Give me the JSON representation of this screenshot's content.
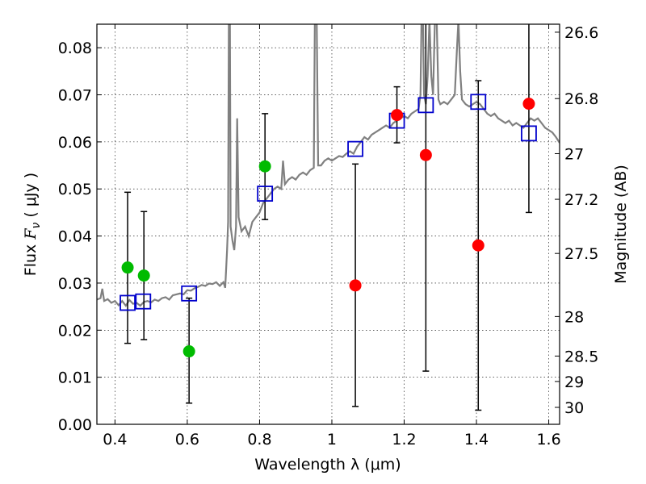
{
  "chart_data": {
    "type": "scatter",
    "xlabel": "Wavelength  λ (μm)",
    "ylabel_parts": [
      "Flux  ",
      "F",
      "ν",
      "  (  μJy  )"
    ],
    "ylabel_right": "Magnitude (AB)",
    "xlim": [
      0.35,
      1.63
    ],
    "ylim": [
      0.0,
      0.085
    ],
    "x_ticks": [
      0.4,
      0.6,
      0.8,
      1.0,
      1.2,
      1.4,
      1.6
    ],
    "x_tick_labels": [
      "0.4",
      "0.6",
      "0.8",
      "1",
      "1.2",
      "1.4",
      "1.6"
    ],
    "y_ticks": [
      0.0,
      0.01,
      0.02,
      0.03,
      0.04,
      0.05,
      0.06,
      0.07,
      0.08
    ],
    "y_tick_labels": [
      "0.00",
      "0.01",
      "0.02",
      "0.03",
      "0.04",
      "0.05",
      "0.06",
      "0.07",
      "0.08"
    ],
    "right_ticks": [
      {
        "flux": 0.0833,
        "label": "26.6"
      },
      {
        "flux": 0.0692,
        "label": "26.8"
      },
      {
        "flux": 0.0575,
        "label": "27"
      },
      {
        "flux": 0.0478,
        "label": "27.2"
      },
      {
        "flux": 0.0363,
        "label": "27.5"
      },
      {
        "flux": 0.0229,
        "label": "28"
      },
      {
        "flux": 0.0145,
        "label": "28.5"
      },
      {
        "flux": 0.0091,
        "label": "29"
      },
      {
        "flux": 0.0036,
        "label": "30"
      }
    ],
    "colors": {
      "sed": "#808080",
      "detection": "#00bb00",
      "upper": "#ff0000",
      "model": "#0000cc",
      "errorbar": "#000000"
    },
    "sed_spectrum": [
      [
        0.35,
        0.0265
      ],
      [
        0.36,
        0.0268
      ],
      [
        0.365,
        0.0288
      ],
      [
        0.37,
        0.0262
      ],
      [
        0.38,
        0.0266
      ],
      [
        0.39,
        0.0258
      ],
      [
        0.4,
        0.0262
      ],
      [
        0.41,
        0.0253
      ],
      [
        0.42,
        0.0262
      ],
      [
        0.43,
        0.0252
      ],
      [
        0.44,
        0.0264
      ],
      [
        0.45,
        0.0256
      ],
      [
        0.46,
        0.0258
      ],
      [
        0.47,
        0.0252
      ],
      [
        0.48,
        0.026
      ],
      [
        0.49,
        0.0262
      ],
      [
        0.5,
        0.0259
      ],
      [
        0.51,
        0.0265
      ],
      [
        0.52,
        0.0262
      ],
      [
        0.53,
        0.0268
      ],
      [
        0.54,
        0.027
      ],
      [
        0.55,
        0.0265
      ],
      [
        0.56,
        0.0274
      ],
      [
        0.57,
        0.0276
      ],
      [
        0.58,
        0.0278
      ],
      [
        0.59,
        0.0276
      ],
      [
        0.6,
        0.0285
      ],
      [
        0.61,
        0.0284
      ],
      [
        0.62,
        0.0289
      ],
      [
        0.63,
        0.0292
      ],
      [
        0.64,
        0.0296
      ],
      [
        0.65,
        0.0294
      ],
      [
        0.66,
        0.0299
      ],
      [
        0.67,
        0.0298
      ],
      [
        0.68,
        0.0302
      ],
      [
        0.69,
        0.0294
      ],
      [
        0.7,
        0.0302
      ],
      [
        0.705,
        0.029
      ],
      [
        0.71,
        0.037
      ],
      [
        0.713,
        0.043
      ],
      [
        0.715,
        0.086
      ],
      [
        0.718,
        0.086
      ],
      [
        0.72,
        0.042
      ],
      [
        0.725,
        0.039
      ],
      [
        0.73,
        0.037
      ],
      [
        0.735,
        0.042
      ],
      [
        0.738,
        0.065
      ],
      [
        0.742,
        0.044
      ],
      [
        0.75,
        0.041
      ],
      [
        0.76,
        0.042
      ],
      [
        0.77,
        0.04
      ],
      [
        0.78,
        0.043
      ],
      [
        0.79,
        0.044
      ],
      [
        0.8,
        0.045
      ],
      [
        0.81,
        0.047
      ],
      [
        0.82,
        0.048
      ],
      [
        0.83,
        0.049
      ],
      [
        0.84,
        0.05
      ],
      [
        0.85,
        0.0505
      ],
      [
        0.86,
        0.05
      ],
      [
        0.865,
        0.056
      ],
      [
        0.87,
        0.051
      ],
      [
        0.88,
        0.052
      ],
      [
        0.89,
        0.0525
      ],
      [
        0.9,
        0.052
      ],
      [
        0.91,
        0.053
      ],
      [
        0.92,
        0.0535
      ],
      [
        0.93,
        0.053
      ],
      [
        0.94,
        0.054
      ],
      [
        0.95,
        0.0545
      ],
      [
        0.953,
        0.086
      ],
      [
        0.958,
        0.086
      ],
      [
        0.962,
        0.055
      ],
      [
        0.97,
        0.055
      ],
      [
        0.98,
        0.056
      ],
      [
        0.99,
        0.0565
      ],
      [
        1.0,
        0.056
      ],
      [
        1.01,
        0.0565
      ],
      [
        1.02,
        0.057
      ],
      [
        1.03,
        0.0568
      ],
      [
        1.04,
        0.0575
      ],
      [
        1.05,
        0.058
      ],
      [
        1.06,
        0.0575
      ],
      [
        1.07,
        0.059
      ],
      [
        1.08,
        0.06
      ],
      [
        1.09,
        0.061
      ],
      [
        1.1,
        0.0605
      ],
      [
        1.11,
        0.0615
      ],
      [
        1.12,
        0.062
      ],
      [
        1.13,
        0.0625
      ],
      [
        1.14,
        0.063
      ],
      [
        1.15,
        0.0635
      ],
      [
        1.16,
        0.063
      ],
      [
        1.17,
        0.064
      ],
      [
        1.18,
        0.0645
      ],
      [
        1.19,
        0.065
      ],
      [
        1.2,
        0.0655
      ],
      [
        1.21,
        0.065
      ],
      [
        1.22,
        0.066
      ],
      [
        1.23,
        0.0665
      ],
      [
        1.24,
        0.067
      ],
      [
        1.245,
        0.07
      ],
      [
        1.248,
        0.086
      ],
      [
        1.252,
        0.086
      ],
      [
        1.255,
        0.07
      ],
      [
        1.26,
        0.068
      ],
      [
        1.265,
        0.074
      ],
      [
        1.27,
        0.086
      ],
      [
        1.275,
        0.074
      ],
      [
        1.28,
        0.07
      ],
      [
        1.285,
        0.086
      ],
      [
        1.29,
        0.086
      ],
      [
        1.295,
        0.069
      ],
      [
        1.3,
        0.068
      ],
      [
        1.31,
        0.0685
      ],
      [
        1.32,
        0.068
      ],
      [
        1.33,
        0.069
      ],
      [
        1.34,
        0.07
      ],
      [
        1.345,
        0.078
      ],
      [
        1.35,
        0.086
      ],
      [
        1.355,
        0.075
      ],
      [
        1.36,
        0.069
      ],
      [
        1.37,
        0.068
      ],
      [
        1.38,
        0.0675
      ],
      [
        1.39,
        0.068
      ],
      [
        1.4,
        0.0685
      ],
      [
        1.41,
        0.068
      ],
      [
        1.42,
        0.067
      ],
      [
        1.43,
        0.066
      ],
      [
        1.44,
        0.0655
      ],
      [
        1.45,
        0.066
      ],
      [
        1.46,
        0.065
      ],
      [
        1.47,
        0.0645
      ],
      [
        1.48,
        0.064
      ],
      [
        1.49,
        0.0645
      ],
      [
        1.5,
        0.0635
      ],
      [
        1.51,
        0.064
      ],
      [
        1.52,
        0.0635
      ],
      [
        1.53,
        0.063
      ],
      [
        1.54,
        0.064
      ],
      [
        1.55,
        0.065
      ],
      [
        1.56,
        0.0645
      ],
      [
        1.57,
        0.065
      ],
      [
        1.58,
        0.064
      ],
      [
        1.59,
        0.063
      ],
      [
        1.6,
        0.0625
      ],
      [
        1.61,
        0.062
      ],
      [
        1.62,
        0.061
      ],
      [
        1.63,
        0.0598
      ]
    ],
    "errorbars": [
      {
        "x": 0.435,
        "lo": 0.0172,
        "hi": 0.0493
      },
      {
        "x": 0.48,
        "lo": 0.018,
        "hi": 0.0452
      },
      {
        "x": 0.605,
        "lo": 0.0045,
        "hi": 0.0268
      },
      {
        "x": 0.815,
        "lo": 0.0435,
        "hi": 0.066
      },
      {
        "x": 1.065,
        "lo": 0.0038,
        "hi": 0.0553
      },
      {
        "x": 1.18,
        "lo": 0.0598,
        "hi": 0.0717
      },
      {
        "x": 1.26,
        "lo": 0.0113,
        "hi": 0.086
      },
      {
        "x": 1.405,
        "lo": 0.003,
        "hi": 0.073
      },
      {
        "x": 1.545,
        "lo": 0.045,
        "hi": 0.086
      }
    ],
    "detections": [
      {
        "x": 0.435,
        "y": 0.0333
      },
      {
        "x": 0.48,
        "y": 0.0316
      },
      {
        "x": 0.605,
        "y": 0.0155
      },
      {
        "x": 0.815,
        "y": 0.0548
      }
    ],
    "non_detections": [
      {
        "x": 1.065,
        "y": 0.0295
      },
      {
        "x": 1.18,
        "y": 0.0657
      },
      {
        "x": 1.26,
        "y": 0.0572
      },
      {
        "x": 1.405,
        "y": 0.038
      },
      {
        "x": 1.545,
        "y": 0.0681
      }
    ],
    "model_fluxes": [
      {
        "x": 0.435,
        "y": 0.0258
      },
      {
        "x": 0.478,
        "y": 0.0261
      },
      {
        "x": 0.605,
        "y": 0.0278
      },
      {
        "x": 0.815,
        "y": 0.049
      },
      {
        "x": 1.065,
        "y": 0.0585
      },
      {
        "x": 1.18,
        "y": 0.0645
      },
      {
        "x": 1.26,
        "y": 0.0678
      },
      {
        "x": 1.405,
        "y": 0.0685
      },
      {
        "x": 1.545,
        "y": 0.0618
      }
    ]
  }
}
